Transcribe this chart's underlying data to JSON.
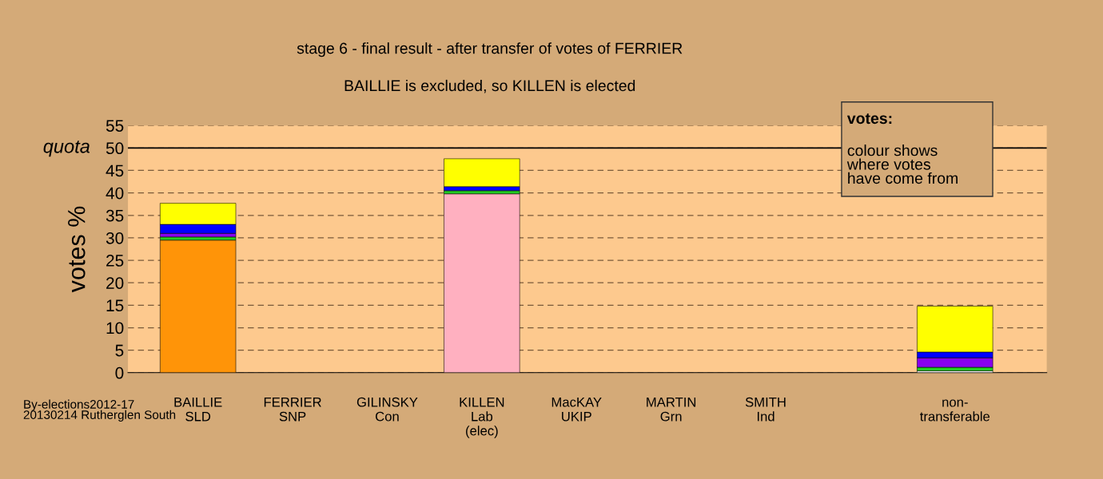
{
  "chart_data": {
    "type": "bar",
    "stacked": true,
    "title": "stage 6 - final result - after transfer of votes of FERRIER",
    "subtitle": "BAILLIE is excluded, so KILLEN is elected",
    "ylabel": "votes %",
    "categories": [
      "BAILLIE\nSLD",
      "FERRIER\nSNP",
      "GILINSKY\nCon",
      "KILLEN\nLab\n(elec)",
      "MacKAY\nUKIP",
      "MARTIN\nGrn",
      "SMITH\nInd",
      null,
      "non-\ntransferable"
    ],
    "series": [
      {
        "color": "#ff9408",
        "values": [
          29.5,
          0,
          0,
          0,
          0,
          0,
          0,
          0,
          0
        ]
      },
      {
        "color": "#ffb0c0",
        "values": [
          0,
          0,
          0,
          39.8,
          0,
          0,
          0,
          0,
          0
        ]
      },
      {
        "color": "#ffffff",
        "values": [
          0,
          0,
          0,
          0,
          0,
          0,
          0,
          0,
          0.4
        ]
      },
      {
        "color": "#22cc22",
        "values": [
          0.7,
          0,
          0,
          0.7,
          0,
          0,
          0,
          0,
          0.8
        ]
      },
      {
        "color": "#8800ee",
        "values": [
          0.8,
          0,
          0,
          0,
          0,
          0,
          0,
          0,
          2.1
        ]
      },
      {
        "color": "#0000ff",
        "values": [
          2.0,
          0,
          0,
          0.9,
          0,
          0,
          0,
          0,
          1.3
        ]
      },
      {
        "color": "#ffff00",
        "values": [
          4.7,
          0,
          0,
          6.2,
          0,
          0,
          0,
          0,
          10.2
        ]
      }
    ],
    "ylim": [
      0,
      55
    ],
    "yticks": [
      0,
      5,
      10,
      15,
      20,
      25,
      30,
      35,
      40,
      45,
      50,
      55
    ],
    "grid": "y",
    "ref_lines": [
      {
        "axis": "y",
        "value": 50,
        "label": "quota",
        "color": "#000000",
        "line_style": "solid"
      }
    ],
    "annotations": [
      "votes:",
      "colour shows\nwhere votes\nhave come from",
      "By-elections2012-17\n20130214 Rutherglen South"
    ]
  }
}
